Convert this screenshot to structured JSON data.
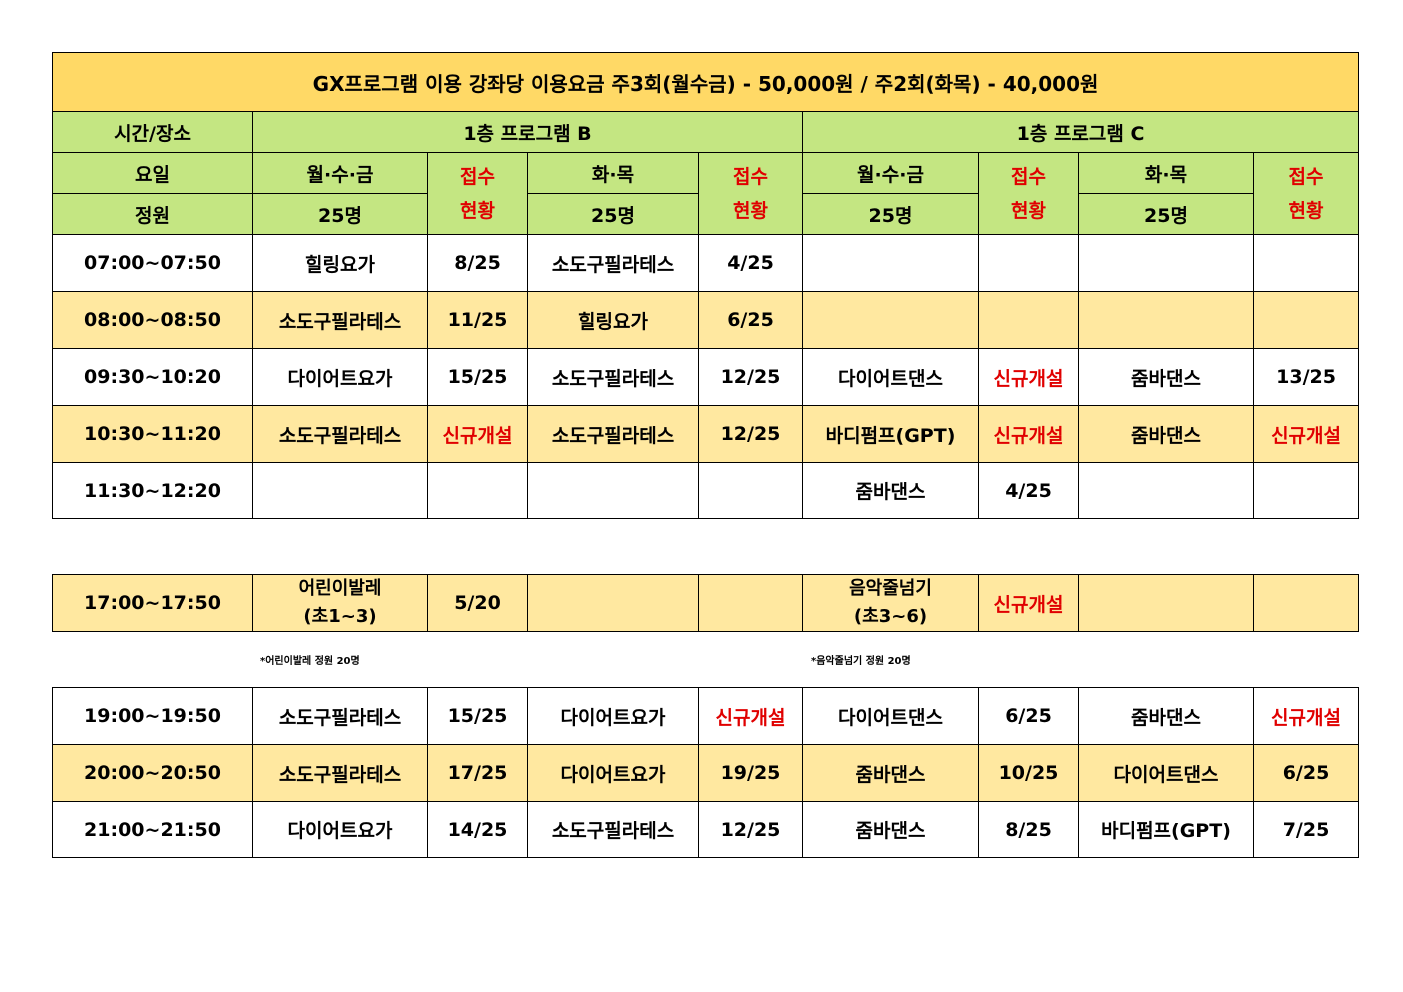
{
  "title": "GX프로그램 이용 강좌당 이용요금 주3회(월수금) - 50,000원 / 주2회(화목) - 40,000원",
  "header": {
    "time_place": "시간/장소",
    "program_b": "1층 프로그램 B",
    "program_c": "1층 프로그램 C",
    "day": "요일",
    "mwf": "월·수·금",
    "tt": "화·목",
    "status_top": "접수",
    "status_bottom": "현황",
    "capacity_label": "정원",
    "capacity": "25명"
  },
  "rows_morning": [
    {
      "time": "07:00~07:50",
      "b1": "힐링요가",
      "b1s": "8/25",
      "b2": "소도구필라테스",
      "b2s": "4/25",
      "c1": "",
      "c1s": "",
      "c2": "",
      "c2s": ""
    },
    {
      "time": "08:00~08:50",
      "b1": "소도구필라테스",
      "b1s": "11/25",
      "b2": "힐링요가",
      "b2s": "6/25",
      "c1": "",
      "c1s": "",
      "c2": "",
      "c2s": ""
    },
    {
      "time": "09:30~10:20",
      "b1": "다이어트요가",
      "b1s": "15/25",
      "b2": "소도구필라테스",
      "b2s": "12/25",
      "c1": "다이어트댄스",
      "c1s": "신규개설",
      "c2": "줌바댄스",
      "c2s": "13/25"
    },
    {
      "time": "10:30~11:20",
      "b1": "소도구필라테스",
      "b1s": "신규개설",
      "b2": "소도구필라테스",
      "b2s": "12/25",
      "c1": "바디펌프(GPT)",
      "c1s": "신규개설",
      "c2": "줌바댄스",
      "c2s": "신규개설"
    },
    {
      "time": "11:30~12:20",
      "b1": "",
      "b1s": "",
      "b2": "",
      "b2s": "",
      "c1": "줌바댄스",
      "c1s": "4/25",
      "c2": "",
      "c2s": ""
    }
  ],
  "row_afternoon": {
    "time": "17:00~17:50",
    "b1_line1": "어린이발레",
    "b1_line2": "(초1~3)",
    "b1s": "5/20",
    "c1_line1": "음악줄넘기",
    "c1_line2": "(초3~6)",
    "c1s": "신규개설"
  },
  "notes": {
    "ballet": "*어린이발레 정원 20명",
    "jumprope": "*음악줄넘기 정원 20명"
  },
  "rows_evening": [
    {
      "time": "19:00~19:50",
      "b1": "소도구필라테스",
      "b1s": "15/25",
      "b2": "다이어트요가",
      "b2s": "신규개설",
      "c1": "다이어트댄스",
      "c1s": "6/25",
      "c2": "줌바댄스",
      "c2s": "신규개설"
    },
    {
      "time": "20:00~20:50",
      "b1": "소도구필라테스",
      "b1s": "17/25",
      "b2": "다이어트요가",
      "b2s": "19/25",
      "c1": "줌바댄스",
      "c1s": "10/25",
      "c2": "다이어트댄스",
      "c2s": "6/25"
    },
    {
      "time": "21:00~21:50",
      "b1": "다이어트요가",
      "b1s": "14/25",
      "b2": "소도구필라테스",
      "b2s": "12/25",
      "c1": "줌바댄스",
      "c1s": "8/25",
      "c2": "바디펌프(GPT)",
      "c2s": "7/25"
    }
  ],
  "colors": {
    "title_bg": "#ffd966",
    "header_bg": "#c4e682",
    "alt_row_bg": "#ffe8a0",
    "new_text": "#e00000"
  }
}
